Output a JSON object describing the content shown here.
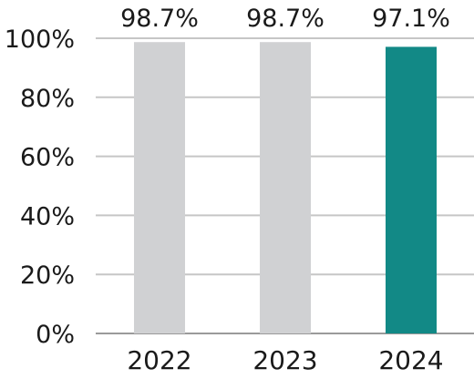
{
  "chart_data": {
    "type": "bar",
    "title": "",
    "xlabel": "",
    "ylabel": "",
    "categories": [
      "2022",
      "2023",
      "2024"
    ],
    "values": [
      98.7,
      98.7,
      97.1
    ],
    "data_labels": [
      "98.7%",
      "98.7%",
      "97.1%"
    ],
    "bar_colors": [
      "#d0d1d3",
      "#d0d1d3",
      "#128986"
    ],
    "ylim": [
      0,
      100
    ],
    "yticks": [
      0,
      20,
      40,
      60,
      80,
      100
    ],
    "ytick_labels": [
      "0%",
      "20%",
      "40%",
      "60%",
      "80%",
      "100%"
    ],
    "grid": true,
    "legend": "none"
  }
}
